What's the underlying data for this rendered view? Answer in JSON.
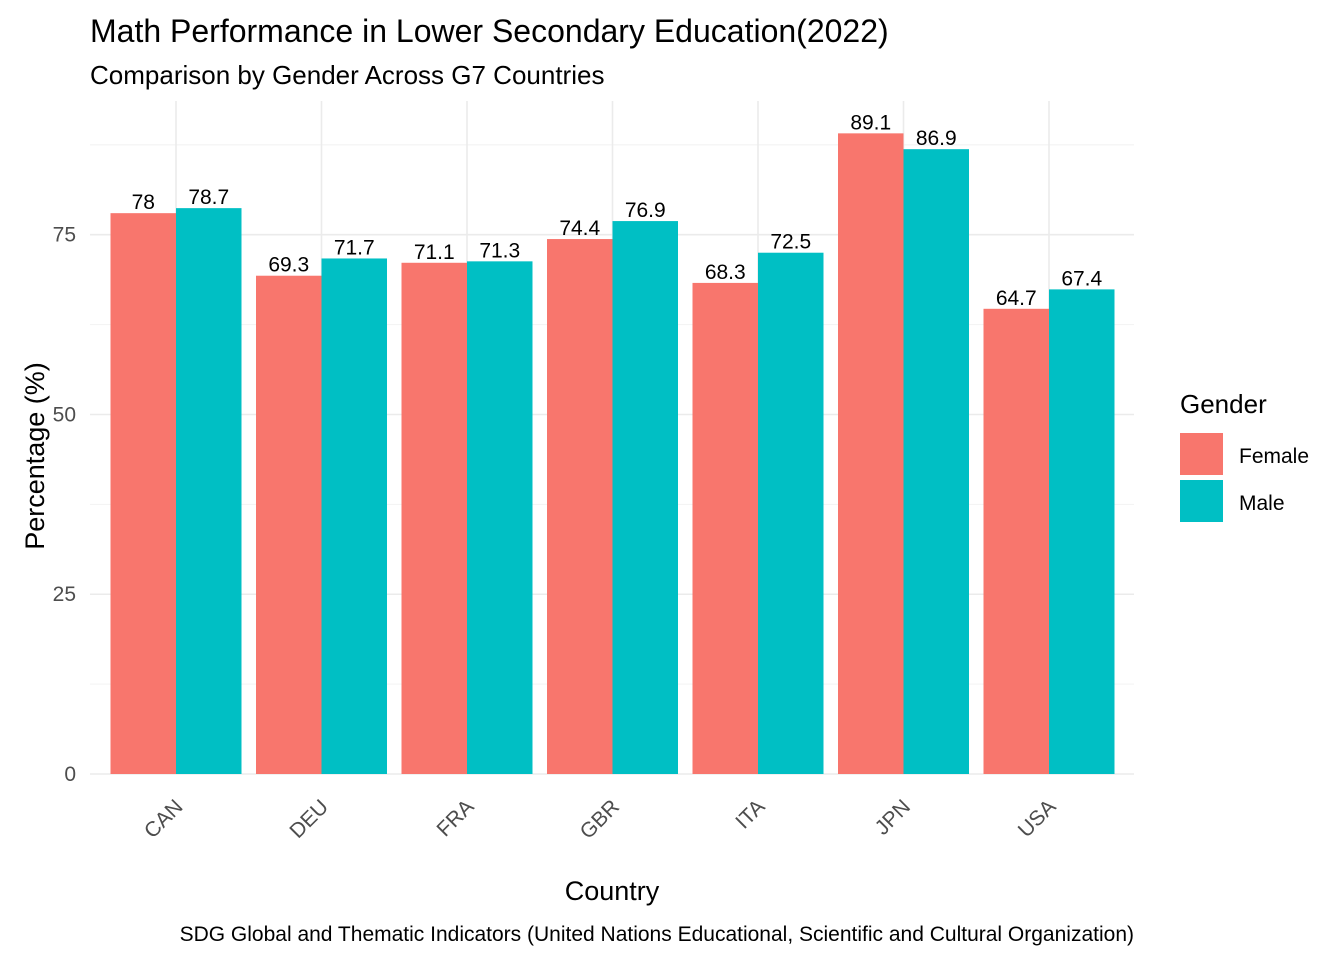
{
  "chart_data": {
    "type": "bar",
    "title": "Math Performance in Lower Secondary Education(2022)",
    "subtitle": "Comparison by Gender Across G7 Countries",
    "xlabel": "Country",
    "ylabel": "Percentage (%)",
    "caption": "SDG Global and Thematic Indicators (United Nations Educational, Scientific and Cultural Organization)",
    "categories": [
      "CAN",
      "DEU",
      "FRA",
      "GBR",
      "ITA",
      "JPN",
      "USA"
    ],
    "series": [
      {
        "name": "Female",
        "color": "#F8766D",
        "values": [
          78,
          69.3,
          71.1,
          74.4,
          68.3,
          89.1,
          64.7
        ]
      },
      {
        "name": "Male",
        "color": "#00BFC4",
        "values": [
          78.7,
          71.7,
          71.3,
          76.9,
          72.5,
          86.9,
          67.4
        ]
      }
    ],
    "y_ticks": [
      0,
      25,
      50,
      75
    ],
    "ylim": [
      0,
      93.6
    ],
    "grid": true,
    "legend": {
      "title": "Gender",
      "position": "right"
    },
    "x_tick_rotation": 45
  }
}
